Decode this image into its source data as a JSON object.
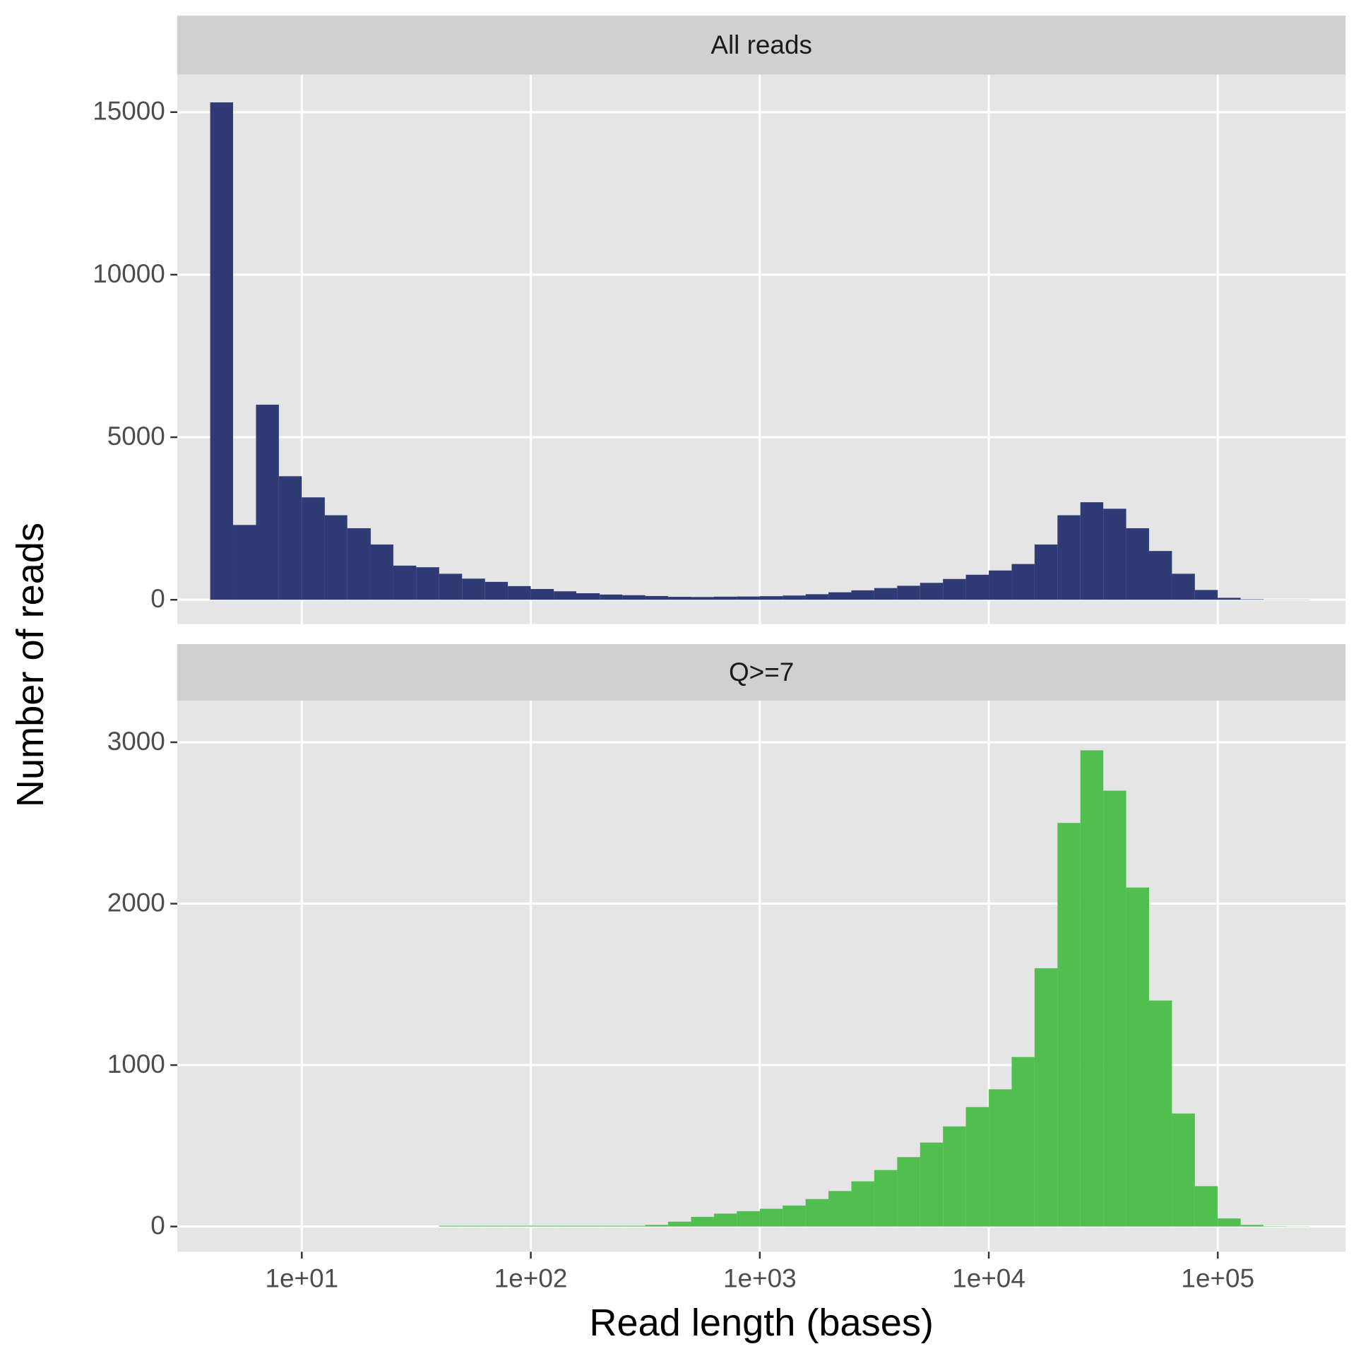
{
  "chart_data": [
    {
      "type": "histogram",
      "title": "All reads",
      "ylabel": "Number of reads",
      "color": "#2e3b74",
      "log_x": true,
      "grid": true,
      "bins": [
        3.98,
        5.01,
        6.31,
        7.94,
        10,
        12.6,
        15.8,
        20,
        25.1,
        31.6,
        39.8,
        50.1,
        63.1,
        79.4,
        100,
        126,
        158,
        200,
        251,
        316,
        398,
        501,
        631,
        794,
        1000,
        1259,
        1585,
        1995,
        2512,
        3162,
        3981,
        5012,
        6310,
        7943,
        10000,
        12589,
        15849,
        19953,
        25119,
        31623,
        39811,
        50119,
        63096,
        79433,
        100000,
        125893,
        158489,
        199526,
        251189
      ],
      "values": [
        15300,
        2300,
        6000,
        3800,
        3150,
        2600,
        2200,
        1700,
        1050,
        1000,
        800,
        650,
        550,
        420,
        330,
        260,
        200,
        160,
        140,
        115,
        90,
        85,
        95,
        100,
        110,
        130,
        170,
        230,
        290,
        360,
        430,
        520,
        640,
        770,
        900,
        1100,
        1700,
        2600,
        3000,
        2800,
        2200,
        1500,
        800,
        300,
        60,
        15,
        5,
        5
      ],
      "xlim": [
        2.86,
        361500
      ],
      "ylim": [
        -749,
        16150
      ],
      "xticks": [
        10,
        100,
        1000,
        10000,
        100000
      ],
      "yticks": [
        0,
        5000,
        10000,
        15000
      ]
    },
    {
      "type": "histogram",
      "title": "Q>=7",
      "xlabel": "Read length (bases)",
      "color": "#50bf50",
      "log_x": true,
      "grid": true,
      "bins": [
        3.98,
        5.01,
        6.31,
        7.94,
        10,
        12.6,
        15.8,
        20,
        25.1,
        31.6,
        39.8,
        50.1,
        63.1,
        79.4,
        100,
        126,
        158,
        200,
        251,
        316,
        398,
        501,
        631,
        794,
        1000,
        1259,
        1585,
        1995,
        2512,
        3162,
        3981,
        5012,
        6310,
        7943,
        10000,
        12589,
        15849,
        19953,
        25119,
        31623,
        39811,
        50119,
        63096,
        79433,
        100000,
        125893,
        158489,
        199526,
        251189
      ],
      "values": [
        0,
        0,
        0,
        0,
        0,
        0,
        0,
        0,
        0,
        0,
        5,
        5,
        5,
        5,
        5,
        5,
        5,
        5,
        5,
        10,
        30,
        60,
        80,
        95,
        110,
        130,
        170,
        220,
        280,
        350,
        430,
        520,
        620,
        740,
        850,
        1050,
        1600,
        2500,
        2950,
        2700,
        2100,
        1400,
        700,
        250,
        50,
        10,
        2,
        1
      ],
      "xlim": [
        2.86,
        361500
      ],
      "ylim": [
        -156,
        3258
      ],
      "xticks": [
        {
          "value": 10,
          "label": "1e+01"
        },
        {
          "value": 100,
          "label": "1e+02"
        },
        {
          "value": 1000,
          "label": "1e+03"
        },
        {
          "value": 10000,
          "label": "1e+04"
        },
        {
          "value": 100000,
          "label": "1e+05"
        }
      ],
      "yticks": [
        0,
        1000,
        2000,
        3000
      ]
    }
  ]
}
